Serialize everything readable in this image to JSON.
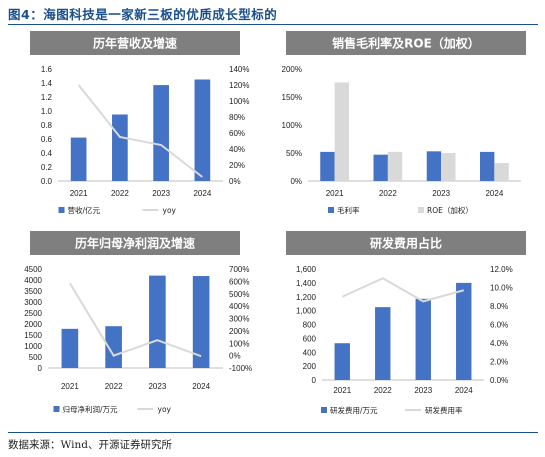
{
  "figure": {
    "title": "图4：海图科技是一家新三板的优质成长型标的",
    "source": "数据来源：Wind、开源证券研究所"
  },
  "colors": {
    "bar": "#4472c4",
    "line": "#d9d9d9",
    "header": "#7f7f7f"
  },
  "chart_data": [
    {
      "type": "bar",
      "title": "历年营收及增速",
      "categories": [
        "2021",
        "2022",
        "2023",
        "2024"
      ],
      "series": [
        {
          "name": "营收/亿元",
          "kind": "bar",
          "axis": "left",
          "values": [
            0.62,
            0.95,
            1.37,
            1.45
          ]
        },
        {
          "name": "yoy",
          "kind": "line",
          "axis": "right",
          "values": [
            1.2,
            0.55,
            0.45,
            0.05
          ]
        }
      ],
      "ylim": [
        0,
        1.6
      ],
      "yticks": [
        "0.0",
        "0.2",
        "0.4",
        "0.6",
        "0.8",
        "1.0",
        "1.2",
        "1.4",
        "1.6"
      ],
      "y2lim": [
        0,
        1.4
      ],
      "y2ticks": [
        "0%",
        "20%",
        "40%",
        "60%",
        "80%",
        "100%",
        "120%",
        "140%"
      ],
      "grid": false,
      "legend": "bottom"
    },
    {
      "type": "bar",
      "title": "销售毛利率及ROE（加权）",
      "categories": [
        "2021",
        "2022",
        "2023",
        "2024"
      ],
      "series": [
        {
          "name": "毛利率",
          "kind": "bar",
          "values": [
            0.52,
            0.47,
            0.53,
            0.52
          ]
        },
        {
          "name": "ROE（加权）",
          "kind": "bar",
          "values": [
            1.76,
            0.52,
            0.5,
            0.32
          ]
        }
      ],
      "ylim": [
        0,
        2.0
      ],
      "yticks": [
        "0%",
        "50%",
        "100%",
        "150%",
        "200%"
      ],
      "grid": false,
      "legend": "bottom"
    },
    {
      "type": "bar",
      "title": "历年归母净利润及增速",
      "categories": [
        "2021",
        "2022",
        "2023",
        "2024"
      ],
      "series": [
        {
          "name": "归母净利润/万元",
          "kind": "bar",
          "axis": "left",
          "values": [
            1780,
            1900,
            4200,
            4180
          ]
        },
        {
          "name": "yoy",
          "kind": "line",
          "axis": "right",
          "values": [
            5.85,
            0.0,
            1.25,
            -0.05
          ]
        }
      ],
      "ylim": [
        0,
        4500
      ],
      "yticks": [
        "0",
        "500",
        "1000",
        "1500",
        "2000",
        "2500",
        "3000",
        "3500",
        "4000",
        "4500"
      ],
      "y2lim": [
        -1,
        7
      ],
      "y2ticks": [
        "-100%",
        "0%",
        "100%",
        "200%",
        "300%",
        "400%",
        "500%",
        "600%",
        "700%"
      ],
      "grid": false,
      "legend": "bottom"
    },
    {
      "type": "bar",
      "title": "研发费用占比",
      "categories": [
        "2021",
        "2022",
        "2023",
        "2024"
      ],
      "series": [
        {
          "name": "研发费用/万元",
          "kind": "bar",
          "axis": "left",
          "values": [
            530,
            1050,
            1170,
            1400
          ]
        },
        {
          "name": "研发费用率",
          "kind": "line",
          "axis": "right",
          "values": [
            0.09,
            0.11,
            0.085,
            0.097
          ]
        }
      ],
      "ylim": [
        0,
        1600
      ],
      "yticks": [
        "0",
        "200",
        "400",
        "600",
        "800",
        "1,000",
        "1,200",
        "1,400",
        "1,600"
      ],
      "y2lim": [
        0,
        0.12
      ],
      "y2ticks": [
        "0.0%",
        "2.0%",
        "4.0%",
        "6.0%",
        "8.0%",
        "10.0%",
        "12.0%"
      ],
      "grid": false,
      "legend": "bottom"
    }
  ]
}
